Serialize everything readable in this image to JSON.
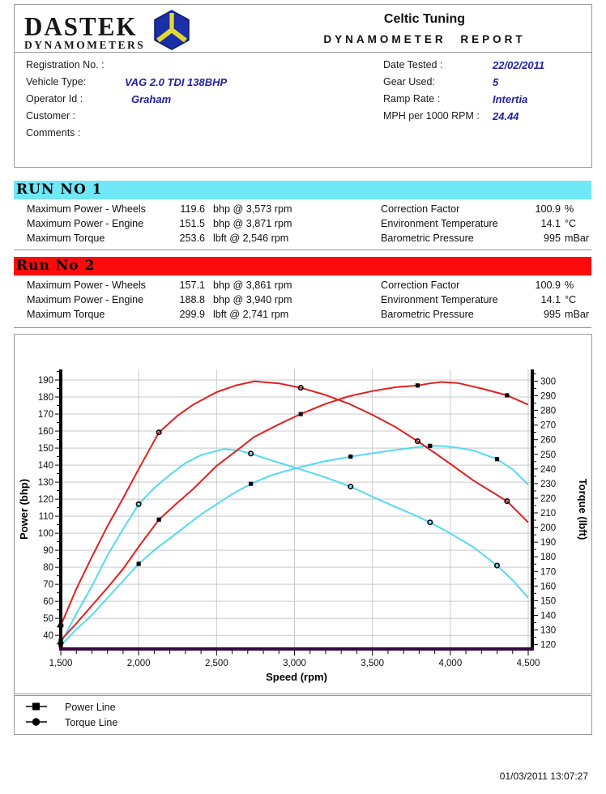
{
  "header": {
    "logo_title": "DASTEK",
    "logo_subtitle": "DYNAMOMETERS",
    "company": "Celtic Tuning",
    "report_title": "DYNAMOMETER REPORT"
  },
  "info": {
    "left": [
      {
        "label": "Registration No. :",
        "value": ""
      },
      {
        "label": "Vehicle Type:",
        "value": "VAG 2.0 TDI 138BHP"
      },
      {
        "label": "Operator Id :",
        "value": "Graham"
      },
      {
        "label": "Customer :",
        "value": ""
      },
      {
        "label": "Comments :",
        "value": ""
      }
    ],
    "right": [
      {
        "label": "Date Tested :",
        "value": "22/02/2011"
      },
      {
        "label": "Gear Used:",
        "value": "5"
      },
      {
        "label": "Ramp Rate :",
        "value": "Intertia"
      },
      {
        "label": "MPH per 1000 RPM :",
        "value": "24.44"
      }
    ]
  },
  "runs": [
    {
      "title": "RUN NO 1",
      "banner_color": "#6FE7F7",
      "stats": [
        {
          "label": "Maximum Power - Wheels",
          "value": "119.6",
          "unit": "bhp @ 3,573 rpm"
        },
        {
          "label": "Maximum Power - Engine",
          "value": "151.5",
          "unit": "bhp @ 3,871 rpm"
        },
        {
          "label": "Maximum Torque",
          "value": "253.6",
          "unit": "lbft @ 2,546 rpm"
        }
      ],
      "env": [
        {
          "label": "Correction Factor",
          "value": "100.9",
          "unit": "%"
        },
        {
          "label": "Environment Temperature",
          "value": "14.1",
          "unit": "°C"
        },
        {
          "label": "Barometric Pressure",
          "value": "995",
          "unit": "mBar"
        }
      ]
    },
    {
      "title": "Run No 2",
      "banner_color": "#FB0B0B",
      "stats": [
        {
          "label": "Maximum Power - Wheels",
          "value": "157.1",
          "unit": "bhp @ 3,861 rpm"
        },
        {
          "label": "Maximum Power - Engine",
          "value": "188.8",
          "unit": "bhp @ 3,940 rpm"
        },
        {
          "label": "Maximum Torque",
          "value": "299.9",
          "unit": "lbft @ 2,741 rpm"
        }
      ],
      "env": [
        {
          "label": "Correction Factor",
          "value": "100.9",
          "unit": "%"
        },
        {
          "label": "Environment Temperature",
          "value": "14.1",
          "unit": "°C"
        },
        {
          "label": "Barometric Pressure",
          "value": "995",
          "unit": "mBar"
        }
      ]
    }
  ],
  "chart_data": {
    "type": "line",
    "xlabel": "Speed (rpm)",
    "ylabel_left": "Power (bhp)",
    "ylabel_right": "Torque (lbft)",
    "x_range": [
      1500,
      4500
    ],
    "power_range": [
      32,
      196.2
    ],
    "torque_range": [
      117,
      308
    ],
    "x_ticks": [
      1500,
      2000,
      2500,
      3000,
      3500,
      4000,
      4500
    ],
    "x_tick_labels": [
      "1,500",
      "2,000",
      "2,500",
      "3,000",
      "3,500",
      "4,000",
      "4,500"
    ],
    "power_ticks": [
      40,
      50,
      60,
      70,
      80,
      90,
      100,
      110,
      120,
      130,
      140,
      150,
      160,
      170,
      180,
      190
    ],
    "torque_ticks": [
      120,
      130,
      140,
      150,
      160,
      170,
      180,
      190,
      200,
      210,
      220,
      230,
      240,
      250,
      260,
      270,
      280,
      290,
      300
    ],
    "grid": true,
    "colors": {
      "run1": "#55DAF0",
      "run2": "#E02020",
      "baseline": "#3A0743",
      "grid": "#c9c9c9"
    },
    "series": [
      {
        "name": "Run 1 Power Line",
        "axis": "power",
        "color_key": "run1",
        "marker": "square",
        "points": [
          [
            1500,
            34
          ],
          [
            1600,
            43.5
          ],
          [
            1700,
            52
          ],
          [
            1800,
            62
          ],
          [
            1900,
            72
          ],
          [
            2000,
            82
          ],
          [
            2100,
            90
          ],
          [
            2200,
            97
          ],
          [
            2300,
            104
          ],
          [
            2400,
            111
          ],
          [
            2500,
            117
          ],
          [
            2600,
            123
          ],
          [
            2720,
            129
          ],
          [
            2850,
            134
          ],
          [
            3000,
            138
          ],
          [
            3180,
            142
          ],
          [
            3360,
            145
          ],
          [
            3500,
            147
          ],
          [
            3650,
            149
          ],
          [
            3780,
            150.5
          ],
          [
            3870,
            151.3
          ],
          [
            3950,
            151.2
          ],
          [
            4050,
            150.2
          ],
          [
            4150,
            148.5
          ],
          [
            4300,
            143.5
          ],
          [
            4400,
            137.5
          ],
          [
            4500,
            128.5
          ]
        ],
        "marker_points": [
          [
            1500,
            34
          ],
          [
            2000,
            82
          ],
          [
            2720,
            129
          ],
          [
            3360,
            145
          ],
          [
            3870,
            151.3
          ],
          [
            4300,
            143.5
          ]
        ]
      },
      {
        "name": "Run 1 Torque Line",
        "axis": "torque",
        "color_key": "run1",
        "marker": "circle",
        "points": [
          [
            1500,
            121
          ],
          [
            1600,
            141
          ],
          [
            1700,
            160
          ],
          [
            1800,
            181
          ],
          [
            1900,
            199
          ],
          [
            2000,
            216
          ],
          [
            2100,
            227
          ],
          [
            2200,
            236
          ],
          [
            2300,
            244
          ],
          [
            2400,
            249.5
          ],
          [
            2546,
            253.6
          ],
          [
            2650,
            252.5
          ],
          [
            2720,
            250.5
          ],
          [
            2850,
            246
          ],
          [
            3000,
            241
          ],
          [
            3180,
            235
          ],
          [
            3360,
            228
          ],
          [
            3500,
            221
          ],
          [
            3650,
            214
          ],
          [
            3780,
            208
          ],
          [
            3870,
            203.5
          ],
          [
            4000,
            196
          ],
          [
            4150,
            186.5
          ],
          [
            4300,
            174
          ],
          [
            4400,
            164
          ],
          [
            4500,
            152
          ]
        ],
        "marker_points": [
          [
            1500,
            121
          ],
          [
            2000,
            216
          ],
          [
            2720,
            250.5
          ],
          [
            3360,
            228
          ],
          [
            3870,
            203.5
          ],
          [
            4300,
            174
          ]
        ]
      },
      {
        "name": "Run 2 Power Line",
        "axis": "power",
        "color_key": "run2",
        "marker": "square",
        "points": [
          [
            1500,
            37
          ],
          [
            1600,
            47
          ],
          [
            1700,
            57.5
          ],
          [
            1800,
            68
          ],
          [
            1900,
            79
          ],
          [
            2000,
            92
          ],
          [
            2130,
            108
          ],
          [
            2250,
            118
          ],
          [
            2350,
            126
          ],
          [
            2500,
            139.5
          ],
          [
            2650,
            150
          ],
          [
            2740,
            156.5
          ],
          [
            2900,
            164
          ],
          [
            3040,
            170
          ],
          [
            3200,
            176
          ],
          [
            3350,
            180.5
          ],
          [
            3500,
            183.5
          ],
          [
            3650,
            185.8
          ],
          [
            3790,
            186.8
          ],
          [
            3870,
            188
          ],
          [
            3940,
            188.8
          ],
          [
            4050,
            188.2
          ],
          [
            4200,
            185
          ],
          [
            4364,
            181
          ],
          [
            4500,
            175.5
          ]
        ],
        "marker_points": [
          [
            1500,
            37
          ],
          [
            2130,
            108
          ],
          [
            3040,
            170
          ],
          [
            3790,
            186.8
          ],
          [
            4364,
            181
          ]
        ]
      },
      {
        "name": "Run 2 Torque Line",
        "axis": "torque",
        "color_key": "run2",
        "marker": "circle",
        "points": [
          [
            1500,
            133
          ],
          [
            1600,
            158
          ],
          [
            1700,
            180
          ],
          [
            1800,
            201
          ],
          [
            1900,
            220
          ],
          [
            2000,
            240
          ],
          [
            2130,
            265
          ],
          [
            2250,
            276.5
          ],
          [
            2350,
            284
          ],
          [
            2500,
            292.5
          ],
          [
            2620,
            297
          ],
          [
            2741,
            299.9
          ],
          [
            2900,
            298.5
          ],
          [
            3040,
            295.5
          ],
          [
            3200,
            290.5
          ],
          [
            3350,
            284.5
          ],
          [
            3500,
            277
          ],
          [
            3650,
            268.5
          ],
          [
            3790,
            259
          ],
          [
            3900,
            251
          ],
          [
            4000,
            243.5
          ],
          [
            4150,
            232
          ],
          [
            4364,
            218
          ],
          [
            4500,
            203.5
          ]
        ],
        "marker_points": [
          [
            1500,
            133
          ],
          [
            2130,
            265
          ],
          [
            3040,
            295.5
          ],
          [
            3790,
            259
          ],
          [
            4364,
            218
          ]
        ]
      }
    ]
  },
  "legend": [
    {
      "marker": "square",
      "label": "Power Line"
    },
    {
      "marker": "circle",
      "label": "Torque Line"
    }
  ],
  "footer": {
    "timestamp": "01/03/2011 13:07:27"
  }
}
